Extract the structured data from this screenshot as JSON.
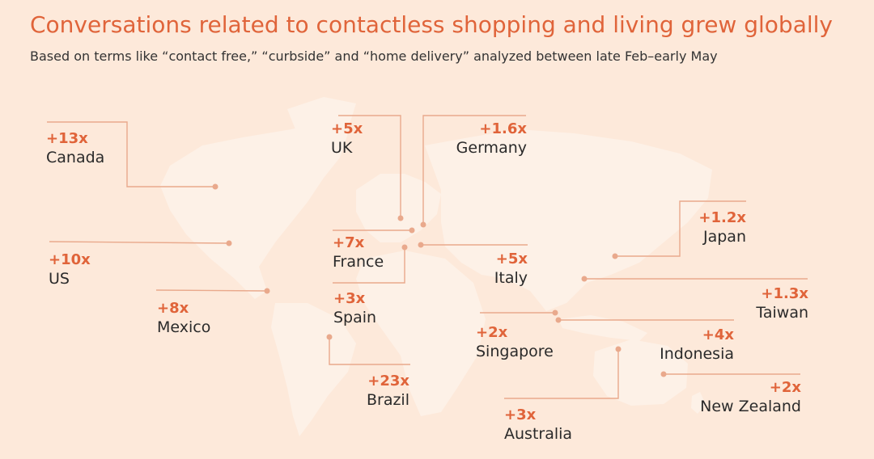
{
  "title": "Conversations related to contactless shopping and living grew globally",
  "subtitle": "Based on terms like “contact free,” “curbside” and “home delivery” analyzed between late Feb–early May",
  "colors": {
    "accent": "#e0643a",
    "background": "#fde9da",
    "land": "#fdf1e7",
    "leader": "#e9a98c"
  },
  "countries": [
    {
      "name": "Canada",
      "value": "+13x"
    },
    {
      "name": "US",
      "value": "+10x"
    },
    {
      "name": "Mexico",
      "value": "+8x"
    },
    {
      "name": "UK",
      "value": "+5x"
    },
    {
      "name": "Germany",
      "value": "+1.6x"
    },
    {
      "name": "France",
      "value": "+7x"
    },
    {
      "name": "Italy",
      "value": "+5x"
    },
    {
      "name": "Spain",
      "value": "+3x"
    },
    {
      "name": "Brazil",
      "value": "+23x"
    },
    {
      "name": "Japan",
      "value": "+1.2x"
    },
    {
      "name": "Taiwan",
      "value": "+1.3x"
    },
    {
      "name": "Singapore",
      "value": "+2x"
    },
    {
      "name": "Indonesia",
      "value": "+4x"
    },
    {
      "name": "New Zealand",
      "value": "+2x"
    },
    {
      "name": "Australia",
      "value": "+3x"
    }
  ]
}
